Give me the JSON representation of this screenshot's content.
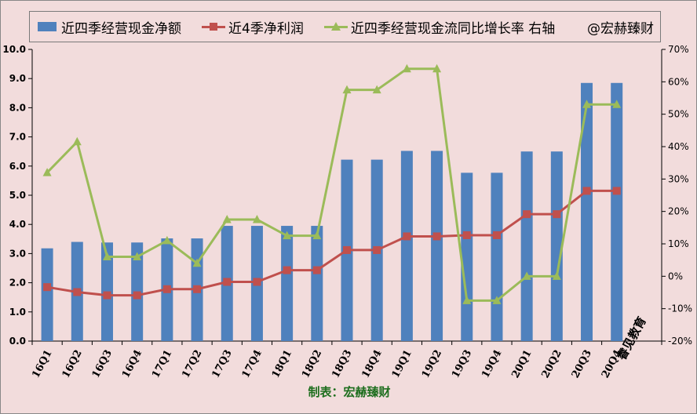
{
  "legend": {
    "items": [
      {
        "label": "近四季经营现金净额",
        "kind": "bar",
        "color": "#4f81bd"
      },
      {
        "label": "近4季净利润",
        "kind": "line-square",
        "color": "#c0504d"
      },
      {
        "label": "近四季经营现金流同比增长率 右轴",
        "kind": "line-triangle",
        "color": "#9bbb59"
      }
    ],
    "watermark": "@宏赫臻财"
  },
  "footer": {
    "credit": "制表：宏赫臻财"
  },
  "stamp": "睿见教育",
  "chart_data": {
    "type": "bar",
    "categories": [
      "16Q1",
      "16Q2",
      "16Q3",
      "16Q4",
      "17Q1",
      "17Q2",
      "17Q3",
      "17Q4",
      "18Q1",
      "18Q2",
      "18Q3",
      "18Q4",
      "19Q1",
      "19Q2",
      "19Q3",
      "19Q4",
      "20Q1",
      "20Q2",
      "20Q3",
      "20Q4"
    ],
    "series": [
      {
        "name": "近四季经营现金净额",
        "type": "bar",
        "axis": "left",
        "color": "#4f81bd",
        "values": [
          3.18,
          3.4,
          3.38,
          3.38,
          3.52,
          3.52,
          3.95,
          3.95,
          3.95,
          3.95,
          6.22,
          6.22,
          6.52,
          6.52,
          5.77,
          5.77,
          6.5,
          6.5,
          8.85,
          8.85
        ]
      },
      {
        "name": "近4季净利润",
        "type": "line",
        "axis": "left",
        "color": "#c0504d",
        "marker": "square",
        "values": [
          1.85,
          1.68,
          1.57,
          1.57,
          1.78,
          1.78,
          2.03,
          2.03,
          2.43,
          2.43,
          3.12,
          3.12,
          3.59,
          3.59,
          3.63,
          3.63,
          4.35,
          4.35,
          5.15,
          5.15
        ]
      },
      {
        "name": "近四季经营现金流同比增长率 右轴",
        "type": "line",
        "axis": "right",
        "color": "#9bbb59",
        "marker": "triangle",
        "values": [
          0.32,
          0.415,
          0.06,
          0.06,
          0.11,
          0.04,
          0.175,
          0.175,
          0.125,
          0.125,
          0.575,
          0.575,
          0.64,
          0.64,
          -0.075,
          -0.075,
          0.0,
          0.0,
          0.53,
          0.53
        ]
      }
    ],
    "y_left": {
      "min": 0,
      "max": 10,
      "ticks": [
        "0.0",
        "1.0",
        "2.0",
        "3.0",
        "4.0",
        "5.0",
        "6.0",
        "7.0",
        "8.0",
        "9.0",
        "10.0"
      ]
    },
    "y_right": {
      "min": -0.2,
      "max": 0.7,
      "ticks": [
        "-20%",
        "-10%",
        "0%",
        "10%",
        "20%",
        "30%",
        "40%",
        "50%",
        "60%",
        "70%"
      ]
    },
    "grid": false,
    "legend_position": "top"
  }
}
